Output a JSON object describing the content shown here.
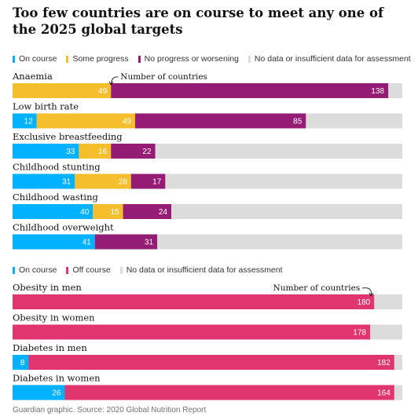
{
  "title": "Too few countries are on course to meet any one of the 2025 global targets",
  "colors": {
    "on_course": "#00b2ff",
    "some_progress": "#f5be2c",
    "no_progress": "#951c75",
    "no_data": "#dcdcdc",
    "off_course": "#e0356e"
  },
  "source": "Guardian graphic. Source: 2020 Global Nutrition Report",
  "chart_data": [
    {
      "type": "bar",
      "stacked": true,
      "orientation": "horizontal",
      "legend": [
        {
          "key": "on_course",
          "label": "On course"
        },
        {
          "key": "some_progress",
          "label": "Some progress"
        },
        {
          "key": "no_progress",
          "label": "No progress or worsening"
        },
        {
          "key": "no_data",
          "label": "No data or insufficient data for assessment"
        }
      ],
      "annotation": "Number of countries",
      "categories": [
        "Anaemia",
        "Low birth rate",
        "Exclusive breastfeeding",
        "Childhood stunting",
        "Childhood wasting",
        "Childhood overweight"
      ],
      "series": [
        {
          "name": "On course",
          "key": "on_course",
          "values": [
            0,
            12,
            33,
            31,
            40,
            41
          ]
        },
        {
          "name": "Some progress",
          "key": "some_progress",
          "values": [
            49,
            49,
            16,
            28,
            15,
            0
          ]
        },
        {
          "name": "No progress or worsening",
          "key": "no_progress",
          "values": [
            138,
            85,
            22,
            17,
            24,
            31
          ]
        }
      ],
      "xlim": [
        0,
        194
      ]
    },
    {
      "type": "bar",
      "stacked": true,
      "orientation": "horizontal",
      "legend": [
        {
          "key": "on_course",
          "label": "On course"
        },
        {
          "key": "off_course",
          "label": "Off course"
        },
        {
          "key": "no_data",
          "label": "No data or insufficient data for assessment"
        }
      ],
      "annotation": "Number of countries",
      "categories": [
        "Obesity in men",
        "Obesity in women",
        "Diabetes in men",
        "Diabetes in women"
      ],
      "series": [
        {
          "name": "On course",
          "key": "on_course",
          "values": [
            0,
            0,
            8,
            26
          ]
        },
        {
          "name": "Off course",
          "key": "off_course",
          "values": [
            180,
            178,
            182,
            164
          ]
        }
      ],
      "xlim": [
        0,
        194
      ]
    }
  ]
}
